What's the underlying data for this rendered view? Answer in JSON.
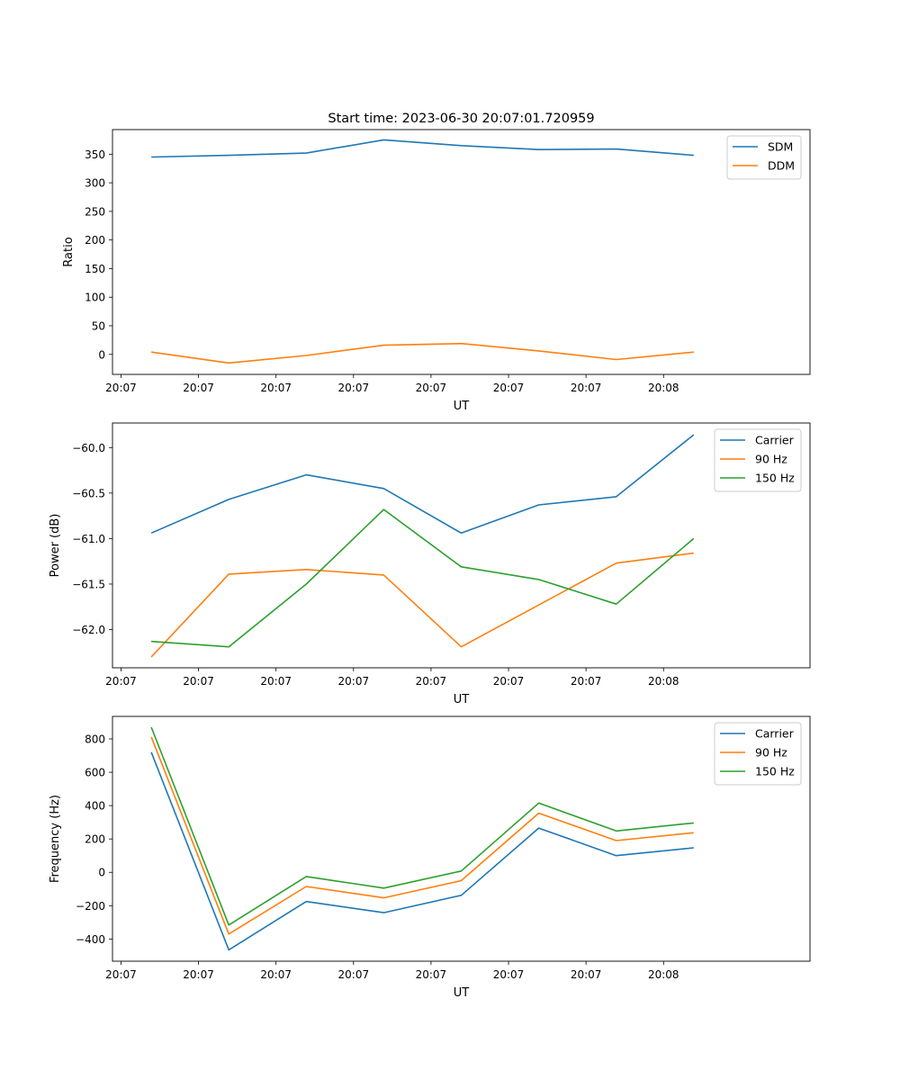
{
  "figure": {
    "title": "Start time: 2023-06-30 20:07:01.720959"
  },
  "chart_data": [
    {
      "type": "line",
      "title": "Start time: 2023-06-30 20:07:01.720959",
      "xlabel": "UT",
      "ylabel": "Ratio",
      "xticks": [
        "20:07",
        "20:07",
        "20:07",
        "20:07",
        "20:07",
        "20:07",
        "20:07",
        "20:08"
      ],
      "x": [
        1,
        2,
        3,
        4,
        5,
        6,
        7,
        8
      ],
      "xlim": [
        0.5,
        9.5
      ],
      "ylim": [
        -35,
        393
      ],
      "yticks": [
        0,
        50,
        100,
        150,
        200,
        250,
        300,
        350
      ],
      "legend_position": "top-right",
      "grid": false,
      "series": [
        {
          "name": "SDM",
          "color": "#1f77b4",
          "values": [
            345,
            348,
            352,
            375,
            365,
            358,
            359,
            348
          ]
        },
        {
          "name": "DDM",
          "color": "#ff7f0e",
          "values": [
            4,
            -15,
            -2,
            16,
            19,
            6,
            -9,
            4
          ]
        }
      ]
    },
    {
      "type": "line",
      "xlabel": "UT",
      "ylabel": "Power (dB)",
      "xticks": [
        "20:07",
        "20:07",
        "20:07",
        "20:07",
        "20:07",
        "20:07",
        "20:07",
        "20:08"
      ],
      "x": [
        1,
        2,
        3,
        4,
        5,
        6,
        7,
        8
      ],
      "xlim": [
        0.5,
        9.5
      ],
      "ylim": [
        -62.42,
        -59.73
      ],
      "yticks": [
        "-62.0",
        "-61.5",
        "-61.0",
        "-60.5",
        "-60.0"
      ],
      "legend_position": "top-right",
      "grid": false,
      "series": [
        {
          "name": "Carrier",
          "color": "#1f77b4",
          "values": [
            -60.94,
            -60.57,
            -60.3,
            -60.45,
            -60.94,
            -60.63,
            -60.54,
            -59.86
          ]
        },
        {
          "name": "90 Hz",
          "color": "#ff7f0e",
          "values": [
            -62.3,
            -61.39,
            -61.34,
            -61.4,
            -62.19,
            -61.73,
            -61.27,
            -61.16
          ]
        },
        {
          "name": "150 Hz",
          "color": "#2ca02c",
          "values": [
            -62.13,
            -62.19,
            -61.5,
            -60.68,
            -61.31,
            -61.45,
            -61.72,
            -61.0
          ]
        }
      ]
    },
    {
      "type": "line",
      "xlabel": "UT",
      "ylabel": "Frequency (Hz)",
      "xticks": [
        "20:07",
        "20:07",
        "20:07",
        "20:07",
        "20:07",
        "20:07",
        "20:07",
        "20:08"
      ],
      "x": [
        1,
        2,
        3,
        4,
        5,
        6,
        7,
        8
      ],
      "xlim": [
        0.5,
        9.5
      ],
      "ylim": [
        -533,
        935
      ],
      "yticks": [
        -400,
        -200,
        0,
        200,
        400,
        600,
        800
      ],
      "legend_position": "top-right",
      "grid": false,
      "series": [
        {
          "name": "Carrier",
          "color": "#1f77b4",
          "values": [
            720,
            -465,
            -175,
            -242,
            -138,
            265,
            100,
            147
          ]
        },
        {
          "name": "90 Hz",
          "color": "#ff7f0e",
          "values": [
            812,
            -370,
            -85,
            -153,
            -50,
            355,
            190,
            237
          ]
        },
        {
          "name": "150 Hz",
          "color": "#2ca02c",
          "values": [
            870,
            -316,
            -25,
            -95,
            8,
            415,
            248,
            296
          ]
        }
      ]
    }
  ]
}
